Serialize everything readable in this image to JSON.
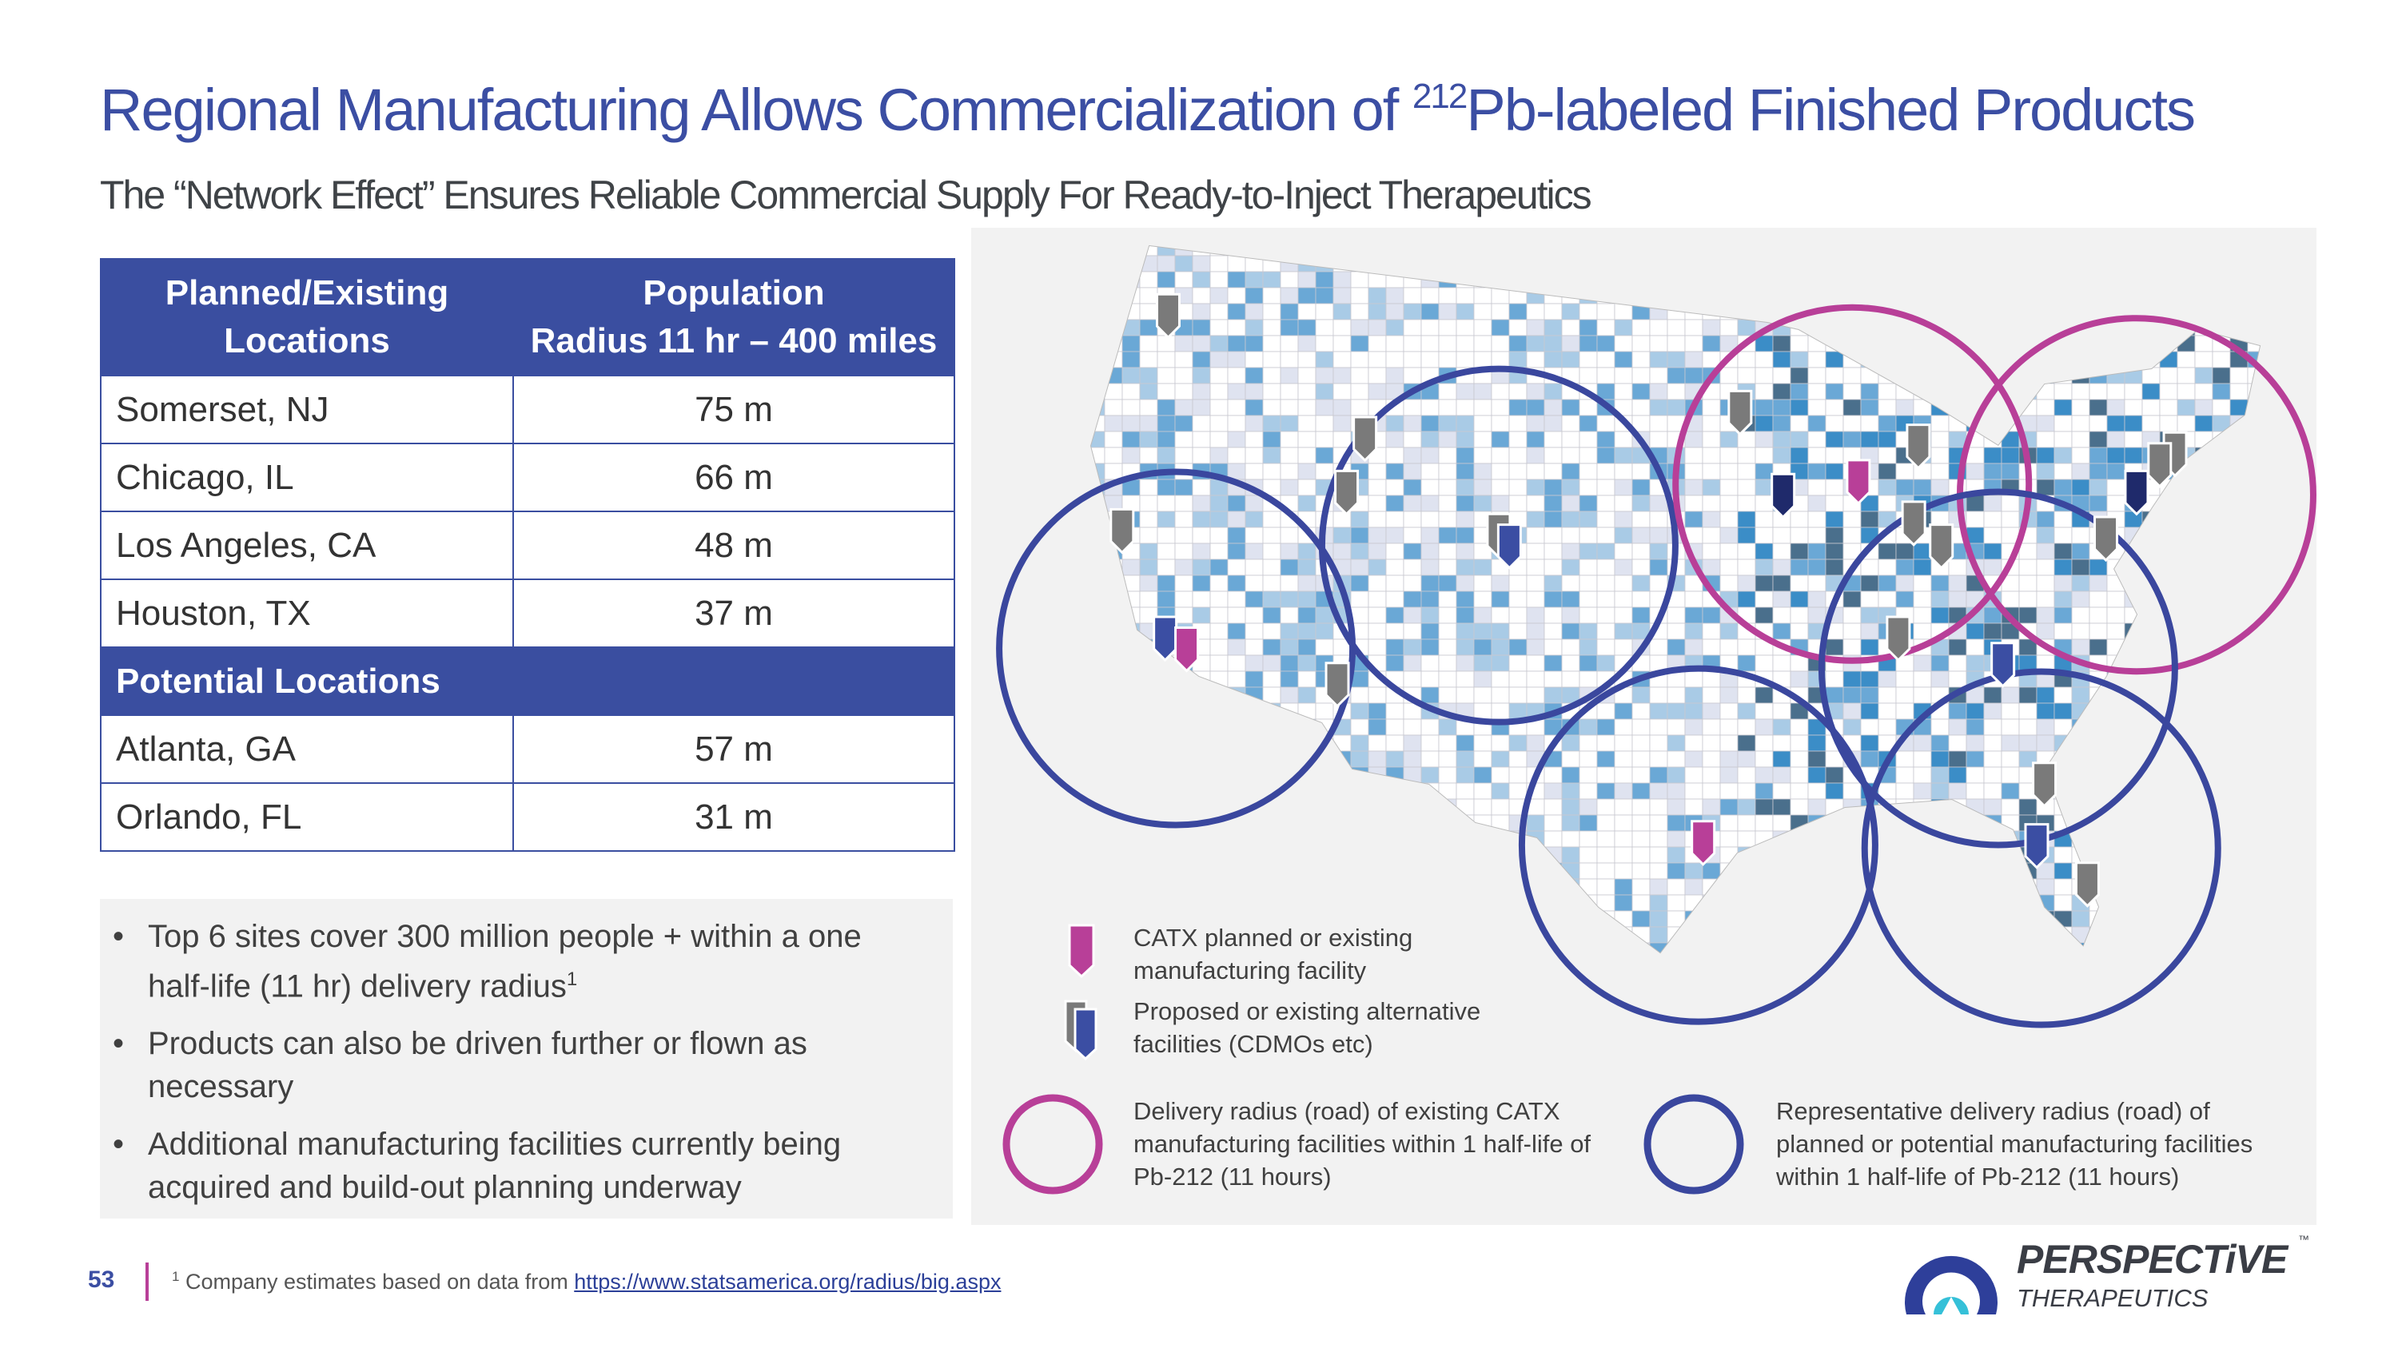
{
  "title": {
    "prefix": "Regional Manufacturing Allows Commercialization of ",
    "superscript": "212",
    "suffix": "Pb-labeled Finished Products"
  },
  "subtitle": "The “Network Effect” Ensures Reliable Commercial Supply For Ready-to-Inject Therapeutics",
  "table": {
    "headers": [
      "Planned/Existing Locations",
      "Population Radius 11 hr – 400 miles"
    ],
    "header_lines": {
      "col1": [
        "Planned/Existing",
        "Locations"
      ],
      "col2": [
        "Population",
        "Radius 11 hr – 400 miles"
      ]
    },
    "existing": [
      {
        "location": "Somerset, NJ",
        "population": "75 m"
      },
      {
        "location": "Chicago, IL",
        "population": "66 m"
      },
      {
        "location": "Los Angeles, CA",
        "population": "48 m"
      },
      {
        "location": "Houston, TX",
        "population": "37 m"
      }
    ],
    "section_label": "Potential Locations",
    "potential": [
      {
        "location": "Atlanta, GA",
        "population": "57 m"
      },
      {
        "location": "Orlando, FL",
        "population": "31 m"
      }
    ]
  },
  "bullets": [
    {
      "text": "Top 6 sites cover 300 million people + within a one half-life (11 hr) delivery radius",
      "sup": "1"
    },
    {
      "text": "Products can also be driven further or flown as necessary"
    },
    {
      "text": "Additional manufacturing facilities currently being acquired and build-out planning underway"
    }
  ],
  "legend": {
    "catx_facility": "CATX planned or existing manufacturing facility",
    "alt_facility": "Proposed or existing alternative facilities (CDMOs etc)",
    "catx_radius": "Delivery radius (road) of existing CATX manufacturing facilities within 1 half-life of Pb-212 (11 hours)",
    "rep_radius": "Representative delivery radius (road) of planned or potential manufacturing facilities within 1 half-life of Pb-212 (11 hours)"
  },
  "colors": {
    "brand_blue": "#3b4ea3",
    "magenta": "#b83f98",
    "navy": "#1f2a6b",
    "gray_pin": "#7a7a7a",
    "circle_blue": "#3a479e"
  },
  "footer": {
    "page_number": "53",
    "footnote_sup": "1",
    "footnote_text": " Company estimates based on data from ",
    "footnote_link": "https://www.statsamerica.org/radius/big.aspx"
  },
  "logo": {
    "name": "PERSPECTiVE",
    "sub": "THERAPEUTICS",
    "tm": "™"
  }
}
